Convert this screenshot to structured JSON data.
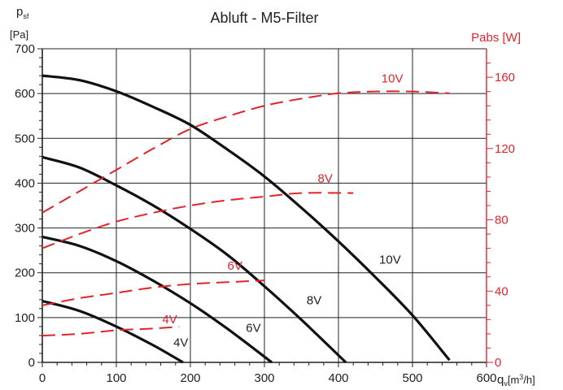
{
  "chart_data": {
    "type": "line",
    "title": "Abluft - M5-Filter",
    "y_left": {
      "label_main": "p",
      "label_sub": "sf",
      "label_unit": "[Pa]",
      "ylim": [
        0,
        700
      ],
      "ticks": [
        0,
        100,
        200,
        300,
        400,
        500,
        600,
        700
      ],
      "tick_labels": [
        "0",
        "100",
        "200",
        "300",
        "400",
        "500",
        "600",
        "700"
      ]
    },
    "y_right": {
      "label": "Pabs [W]",
      "ylim": [
        0,
        176
      ],
      "ticks": [
        0,
        40,
        80,
        120,
        160
      ],
      "tick_labels": [
        "0",
        "40",
        "80",
        "120",
        "160"
      ]
    },
    "x": {
      "label_main": "q",
      "label_sub": "v",
      "label_unit": "[m",
      "label_sup": "3",
      "label_tail": "/h]",
      "xlim": [
        0,
        600
      ],
      "ticks": [
        0,
        100,
        200,
        300,
        400,
        500,
        600
      ],
      "tick_labels": [
        "0",
        "100",
        "200",
        "300",
        "400",
        "500",
        "600"
      ]
    },
    "grid": true,
    "colors": {
      "pressure": "#111111",
      "power": "#e0242b",
      "grid": "#222222",
      "right_axis": "#e0242b"
    },
    "series": [
      {
        "name": "10V",
        "kind": "pressure",
        "x": [
          0,
          50,
          100,
          150,
          200,
          250,
          300,
          350,
          400,
          450,
          500,
          550
        ],
        "y": [
          640,
          630,
          605,
          570,
          530,
          475,
          415,
          345,
          270,
          190,
          105,
          5
        ]
      },
      {
        "name": "8V",
        "kind": "pressure",
        "x": [
          0,
          50,
          100,
          150,
          200,
          250,
          300,
          350,
          410
        ],
        "y": [
          458,
          435,
          395,
          350,
          298,
          240,
          170,
          95,
          0
        ]
      },
      {
        "name": "6V",
        "kind": "pressure",
        "x": [
          0,
          50,
          100,
          150,
          200,
          250,
          310
        ],
        "y": [
          280,
          260,
          226,
          182,
          132,
          75,
          0
        ]
      },
      {
        "name": "4V",
        "kind": "pressure",
        "x": [
          0,
          50,
          100,
          150,
          190
        ],
        "y": [
          137,
          115,
          80,
          38,
          0
        ]
      },
      {
        "name": "10V",
        "kind": "power",
        "x": [
          0,
          50,
          100,
          150,
          200,
          250,
          300,
          350,
          400,
          450,
          500,
          550
        ],
        "y": [
          84,
          96,
          108,
          120,
          131,
          138,
          144,
          148,
          151,
          152,
          152,
          151
        ]
      },
      {
        "name": "8V",
        "kind": "power",
        "x": [
          0,
          50,
          100,
          150,
          200,
          250,
          300,
          350,
          420
        ],
        "y": [
          64,
          72,
          79,
          84,
          88,
          91,
          93,
          95,
          95
        ]
      },
      {
        "name": "6V",
        "kind": "power",
        "x": [
          0,
          50,
          100,
          150,
          200,
          250,
          300
        ],
        "y": [
          32,
          36,
          39,
          42,
          44,
          45,
          46
        ]
      },
      {
        "name": "4V",
        "kind": "power",
        "x": [
          0,
          50,
          100,
          150,
          185
        ],
        "y": [
          15,
          16,
          18,
          19,
          20
        ]
      }
    ],
    "annotations": {
      "pressure": [
        {
          "text": "10V",
          "x": 455,
          "y": 220
        },
        {
          "text": "8V",
          "x": 357,
          "y": 130
        },
        {
          "text": "6V",
          "x": 275,
          "y": 68
        },
        {
          "text": "4V",
          "x": 177,
          "y": 35
        }
      ],
      "power": [
        {
          "text": "10V",
          "x": 458,
          "y": 157
        },
        {
          "text": "8V",
          "x": 372,
          "y": 101
        },
        {
          "text": "6V",
          "x": 250,
          "y": 52
        },
        {
          "text": "4V",
          "x": 162,
          "y": 22
        }
      ]
    }
  }
}
